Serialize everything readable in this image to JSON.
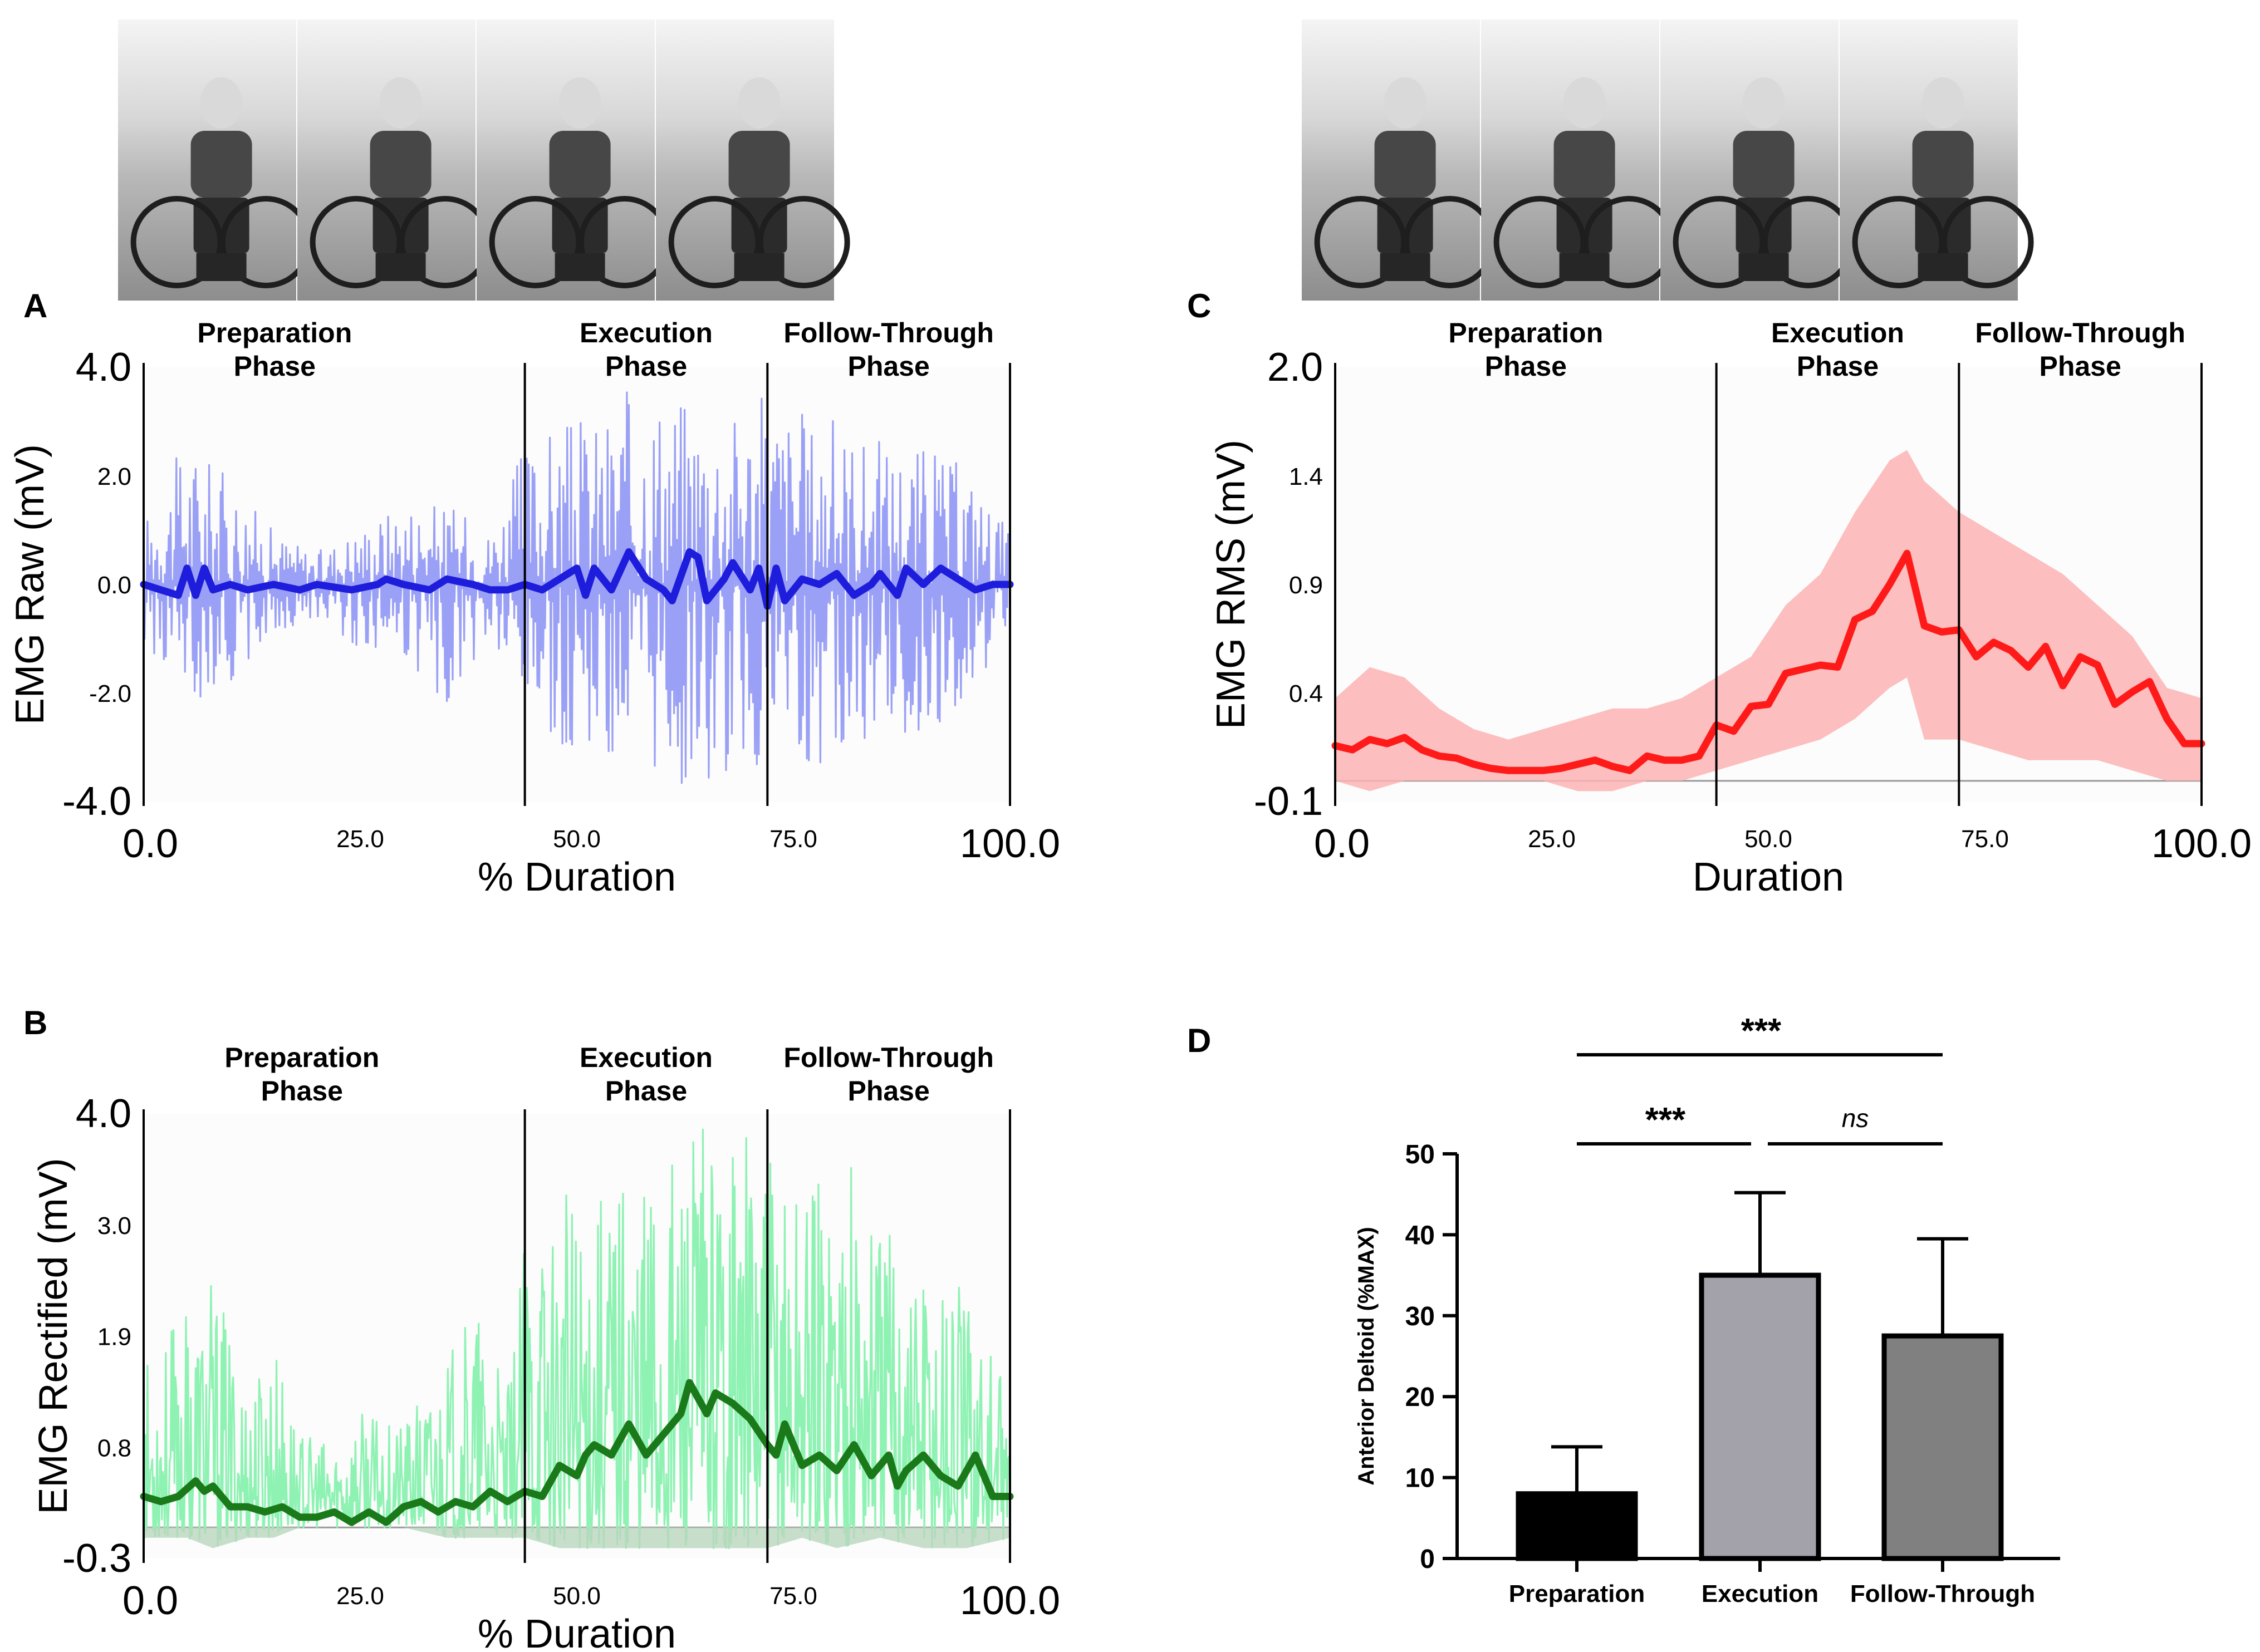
{
  "photo_strips": [
    {
      "id": "left",
      "frames": [
        "frame-1",
        "frame-2",
        "frame-3",
        "frame-4"
      ]
    },
    {
      "id": "right",
      "frames": [
        "frame-1",
        "frame-2",
        "frame-3",
        "frame-4"
      ]
    }
  ],
  "colors": {
    "raw_band": "#9aa0f5",
    "raw_mean": "#1d1ddb",
    "rect_band": "#8ef2b3",
    "rect_mean": "#1a7a1a",
    "rms_band": "#fbb3b3",
    "rms_mean": "#ff1a1a",
    "bar_prep": "#000000",
    "bar_exec": "#a3a2aa",
    "bar_follow": "#808080"
  },
  "chart_data": [
    {
      "panel": "A",
      "type": "line",
      "phases": [
        {
          "name": "Preparation",
          "suffix": "Phase"
        },
        {
          "name": "Execution",
          "suffix": "Phase"
        },
        {
          "name": "Follow-Through",
          "suffix": "Phase"
        }
      ],
      "phase_boundaries": [
        0,
        44,
        72,
        100
      ],
      "xlabel": "% Duration",
      "ylabel": "EMG Raw (mV)",
      "xlim": [
        0,
        100
      ],
      "ylim": [
        -4.0,
        4.0
      ],
      "x_ticks": [
        "0.0",
        "25.0",
        "50.0",
        "75.0",
        "100.0"
      ],
      "y_ticks": [
        "4.0",
        "2.0",
        "0.0",
        "-2.0",
        "-4.0"
      ],
      "series": [
        {
          "name": "raw signal",
          "style": "band",
          "x": [
            0,
            5,
            10,
            15,
            20,
            25,
            30,
            35,
            40,
            44,
            48,
            52,
            56,
            60,
            64,
            68,
            72,
            76,
            80,
            85,
            90,
            95,
            100
          ],
          "upper": [
            1.2,
            2.7,
            2.0,
            1.0,
            0.6,
            1.1,
            1.6,
            1.5,
            1.0,
            2.6,
            3.0,
            3.1,
            3.6,
            3.7,
            3.5,
            3.3,
            3.6,
            3.2,
            3.1,
            2.7,
            2.6,
            2.2,
            1.0
          ],
          "lower": [
            -1.1,
            -2.3,
            -1.8,
            -1.0,
            -0.6,
            -1.2,
            -1.5,
            -2.3,
            -1.2,
            -2.7,
            -3.1,
            -3.0,
            -3.7,
            -3.9,
            -3.9,
            -3.6,
            -3.8,
            -3.4,
            -3.2,
            -2.9,
            -2.8,
            -2.1,
            -1.0
          ]
        },
        {
          "name": "mean",
          "style": "line",
          "x": [
            0,
            2,
            4,
            5,
            6,
            7,
            8,
            10,
            12,
            15,
            18,
            20,
            24,
            27,
            28,
            30,
            33,
            35,
            38,
            40,
            42,
            44,
            46,
            48,
            50,
            51,
            52,
            54,
            56,
            58,
            60,
            61,
            63,
            64,
            65,
            67,
            68,
            70,
            71,
            72,
            73,
            74,
            76,
            78,
            80,
            82,
            84,
            85,
            87,
            88,
            90,
            92,
            94,
            96,
            98,
            100
          ],
          "y": [
            0.0,
            -0.1,
            -0.2,
            0.3,
            -0.2,
            0.3,
            -0.1,
            0.0,
            -0.1,
            0.0,
            -0.1,
            0.0,
            -0.1,
            0.0,
            0.1,
            0.0,
            -0.1,
            0.1,
            0.0,
            -0.1,
            -0.1,
            0.0,
            -0.1,
            0.1,
            0.3,
            -0.2,
            0.3,
            -0.1,
            0.6,
            0.1,
            -0.1,
            -0.3,
            0.6,
            0.5,
            -0.3,
            0.1,
            0.4,
            -0.1,
            0.3,
            -0.4,
            0.3,
            -0.3,
            0.1,
            0.0,
            0.2,
            -0.2,
            0.0,
            0.2,
            -0.2,
            0.3,
            0.0,
            0.3,
            0.1,
            -0.1,
            0.0,
            0.0
          ]
        }
      ]
    },
    {
      "panel": "B",
      "type": "line",
      "phases": [
        {
          "name": "Preparation",
          "suffix": "Phase"
        },
        {
          "name": "Execution",
          "suffix": "Phase"
        },
        {
          "name": "Follow-Through",
          "suffix": "Phase"
        }
      ],
      "phase_boundaries": [
        0,
        44,
        72,
        100
      ],
      "xlabel": "% Duration",
      "ylabel": "EMG Rectified (mV)",
      "xlim": [
        0,
        100
      ],
      "ylim": [
        -0.3,
        4.0
      ],
      "x_ticks": [
        "0.0",
        "25.0",
        "50.0",
        "75.0",
        "100.0"
      ],
      "y_ticks": [
        "4.0",
        "3.0",
        "1.9",
        "0.8",
        "-0.3"
      ],
      "series": [
        {
          "name": "rectified signal",
          "style": "band",
          "x": [
            0,
            5,
            8,
            12,
            15,
            18,
            22,
            25,
            30,
            35,
            38,
            42,
            44,
            48,
            52,
            56,
            60,
            64,
            68,
            72,
            76,
            80,
            85,
            90,
            95,
            100
          ],
          "upper": [
            1.6,
            2.1,
            2.4,
            1.4,
            1.8,
            0.9,
            0.8,
            1.1,
            1.0,
            1.6,
            2.2,
            1.3,
            2.8,
            3.2,
            3.4,
            3.6,
            3.7,
            3.9,
            4.0,
            3.6,
            3.5,
            3.9,
            3.2,
            2.8,
            2.4,
            1.2
          ],
          "lower": [
            -0.1,
            -0.1,
            -0.2,
            -0.1,
            -0.1,
            0.0,
            0.0,
            0.0,
            0.0,
            -0.1,
            -0.1,
            -0.1,
            -0.1,
            -0.2,
            -0.2,
            -0.2,
            -0.2,
            -0.2,
            -0.2,
            -0.2,
            -0.1,
            -0.2,
            -0.1,
            -0.2,
            -0.2,
            -0.1
          ]
        },
        {
          "name": "mean",
          "style": "line",
          "x": [
            0,
            2,
            4,
            6,
            7,
            8,
            10,
            12,
            14,
            16,
            18,
            20,
            22,
            24,
            26,
            28,
            30,
            32,
            34,
            36,
            38,
            40,
            42,
            44,
            46,
            48,
            50,
            51,
            52,
            54,
            56,
            58,
            60,
            62,
            63,
            65,
            66,
            68,
            70,
            72,
            73,
            74,
            76,
            78,
            80,
            82,
            84,
            86,
            87,
            88,
            90,
            92,
            94,
            96,
            98,
            100
          ],
          "y": [
            0.3,
            0.25,
            0.3,
            0.45,
            0.35,
            0.4,
            0.2,
            0.2,
            0.15,
            0.2,
            0.1,
            0.1,
            0.15,
            0.05,
            0.15,
            0.05,
            0.2,
            0.25,
            0.15,
            0.25,
            0.2,
            0.35,
            0.25,
            0.35,
            0.3,
            0.6,
            0.5,
            0.7,
            0.8,
            0.7,
            1.0,
            0.7,
            0.9,
            1.1,
            1.4,
            1.1,
            1.3,
            1.2,
            1.05,
            0.8,
            0.7,
            1.0,
            0.6,
            0.7,
            0.55,
            0.8,
            0.5,
            0.7,
            0.4,
            0.55,
            0.7,
            0.5,
            0.4,
            0.7,
            0.3,
            0.3
          ]
        }
      ]
    },
    {
      "panel": "C",
      "type": "line",
      "phases": [
        {
          "name": "Preparation",
          "suffix": "Phase"
        },
        {
          "name": "Execution",
          "suffix": "Phase"
        },
        {
          "name": "Follow-Through",
          "suffix": "Phase"
        }
      ],
      "phase_boundaries": [
        0,
        44,
        72,
        100
      ],
      "xlabel": "Duration",
      "ylabel": "EMG RMS (mV)",
      "xlim": [
        0,
        100
      ],
      "ylim": [
        -0.1,
        2.0
      ],
      "x_ticks": [
        "0.0",
        "25.0",
        "50.0",
        "75.0",
        "100.0"
      ],
      "y_ticks": [
        "2.0",
        "1.4",
        "0.9",
        "0.4",
        "-0.1"
      ],
      "series": [
        {
          "name": "std band",
          "style": "band",
          "x": [
            0,
            4,
            8,
            12,
            16,
            20,
            24,
            28,
            32,
            36,
            40,
            44,
            48,
            52,
            56,
            60,
            64,
            66,
            68,
            72,
            76,
            80,
            84,
            88,
            92,
            96,
            100
          ],
          "upper": [
            0.4,
            0.55,
            0.5,
            0.35,
            0.25,
            0.2,
            0.25,
            0.3,
            0.35,
            0.35,
            0.4,
            0.5,
            0.6,
            0.85,
            1.0,
            1.3,
            1.55,
            1.6,
            1.45,
            1.3,
            1.2,
            1.1,
            1.0,
            0.85,
            0.7,
            0.45,
            0.4
          ],
          "lower": [
            0.0,
            -0.05,
            0.0,
            0.0,
            0.0,
            0.0,
            0.0,
            -0.05,
            -0.05,
            0.0,
            0.0,
            0.05,
            0.1,
            0.15,
            0.2,
            0.3,
            0.45,
            0.5,
            0.2,
            0.2,
            0.15,
            0.1,
            0.1,
            0.1,
            0.05,
            0.0,
            0.0
          ]
        },
        {
          "name": "mean RMS",
          "style": "line",
          "x": [
            0,
            2,
            4,
            6,
            8,
            10,
            12,
            14,
            16,
            18,
            20,
            22,
            24,
            26,
            28,
            30,
            32,
            34,
            36,
            38,
            40,
            42,
            44,
            46,
            48,
            50,
            52,
            54,
            56,
            58,
            60,
            62,
            64,
            66,
            68,
            70,
            72,
            74,
            76,
            78,
            80,
            82,
            84,
            86,
            88,
            90,
            92,
            94,
            96,
            98,
            100
          ],
          "y": [
            0.17,
            0.15,
            0.2,
            0.18,
            0.21,
            0.15,
            0.12,
            0.11,
            0.08,
            0.06,
            0.05,
            0.05,
            0.05,
            0.06,
            0.08,
            0.1,
            0.07,
            0.05,
            0.12,
            0.1,
            0.1,
            0.12,
            0.27,
            0.24,
            0.36,
            0.37,
            0.52,
            0.54,
            0.56,
            0.55,
            0.78,
            0.82,
            0.95,
            1.1,
            0.75,
            0.72,
            0.73,
            0.6,
            0.67,
            0.63,
            0.55,
            0.65,
            0.46,
            0.6,
            0.56,
            0.37,
            0.43,
            0.48,
            0.3,
            0.18,
            0.18
          ]
        }
      ]
    },
    {
      "panel": "D",
      "type": "bar",
      "categories": [
        "Preparation",
        "Execution",
        "Follow-Through"
      ],
      "values": [
        8,
        35,
        27.5
      ],
      "errors": [
        5.8,
        10.2,
        12.0
      ],
      "ylabel": "Anterior Deltoid (%MAX)",
      "ylim": [
        0,
        50
      ],
      "y_ticks": [
        "0",
        "10",
        "20",
        "30",
        "40",
        "50"
      ],
      "significance": [
        {
          "from": 0,
          "to": 2,
          "label": "***"
        },
        {
          "from": 0,
          "to": 1,
          "label": "***"
        },
        {
          "from": 1,
          "to": 2,
          "label": "ns"
        }
      ]
    }
  ]
}
